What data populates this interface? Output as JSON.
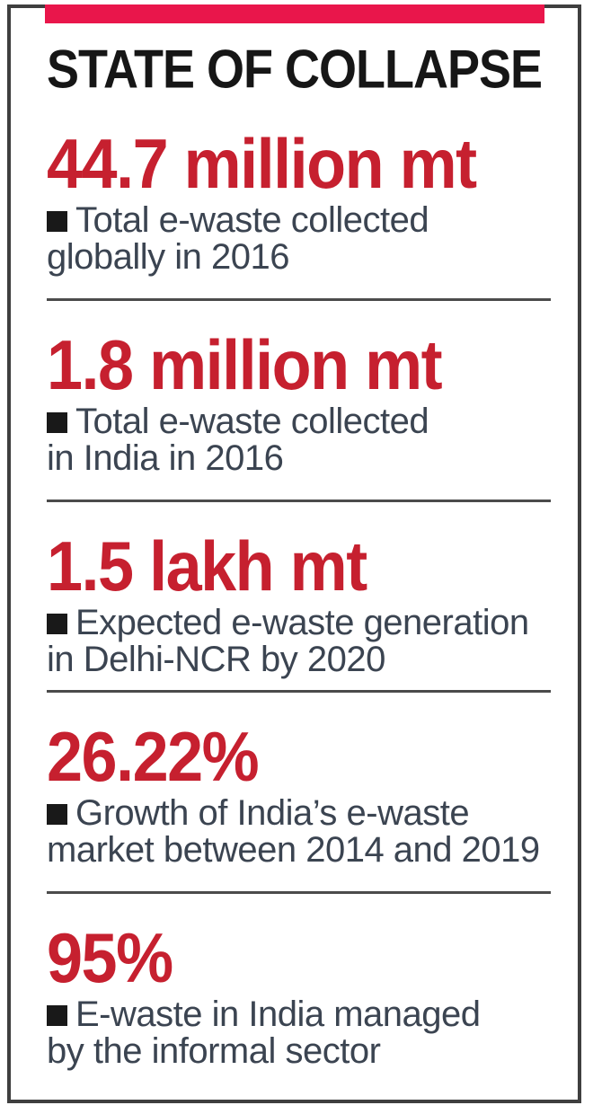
{
  "header": {
    "title": "STATE OF COLLAPSE"
  },
  "stats": [
    {
      "value": "44.7 million mt",
      "lines": [
        "Total e-waste collected",
        "globally in 2016"
      ]
    },
    {
      "value": "1.8 million mt",
      "lines": [
        "Total e-waste collected",
        "in India in 2016"
      ]
    },
    {
      "value": "1.5 lakh mt",
      "lines": [
        "Expected e-waste generation",
        "in Delhi-NCR by 2020"
      ]
    },
    {
      "value": "26.22%",
      "lines": [
        "Growth of India’s e-waste",
        "market between 2014 and 2019"
      ]
    },
    {
      "value": "95%",
      "lines": [
        "E-waste in India managed",
        "by the informal sector"
      ]
    }
  ],
  "colors": {
    "accent_red": "#c6202f",
    "top_bar_red": "#e9164b",
    "title_black": "#161616",
    "body_text": "#3b4451",
    "bullet_black": "#191919",
    "frame_border": "#3f3f3f",
    "divider": "#4b4b4b"
  },
  "chart_data": {
    "type": "table",
    "title": "STATE OF COLLAPSE",
    "rows": [
      {
        "value": "44.7 million mt",
        "label": "Total e-waste collected globally in 2016"
      },
      {
        "value": "1.8 million mt",
        "label": "Total e-waste collected in India in 2016"
      },
      {
        "value": "1.5 lakh mt",
        "label": "Expected e-waste generation in Delhi-NCR by 2020"
      },
      {
        "value": "26.22%",
        "label": "Growth of India’s e-waste market between 2014 and 2019"
      },
      {
        "value": "95%",
        "label": "E-waste in India managed by the informal sector"
      }
    ]
  }
}
